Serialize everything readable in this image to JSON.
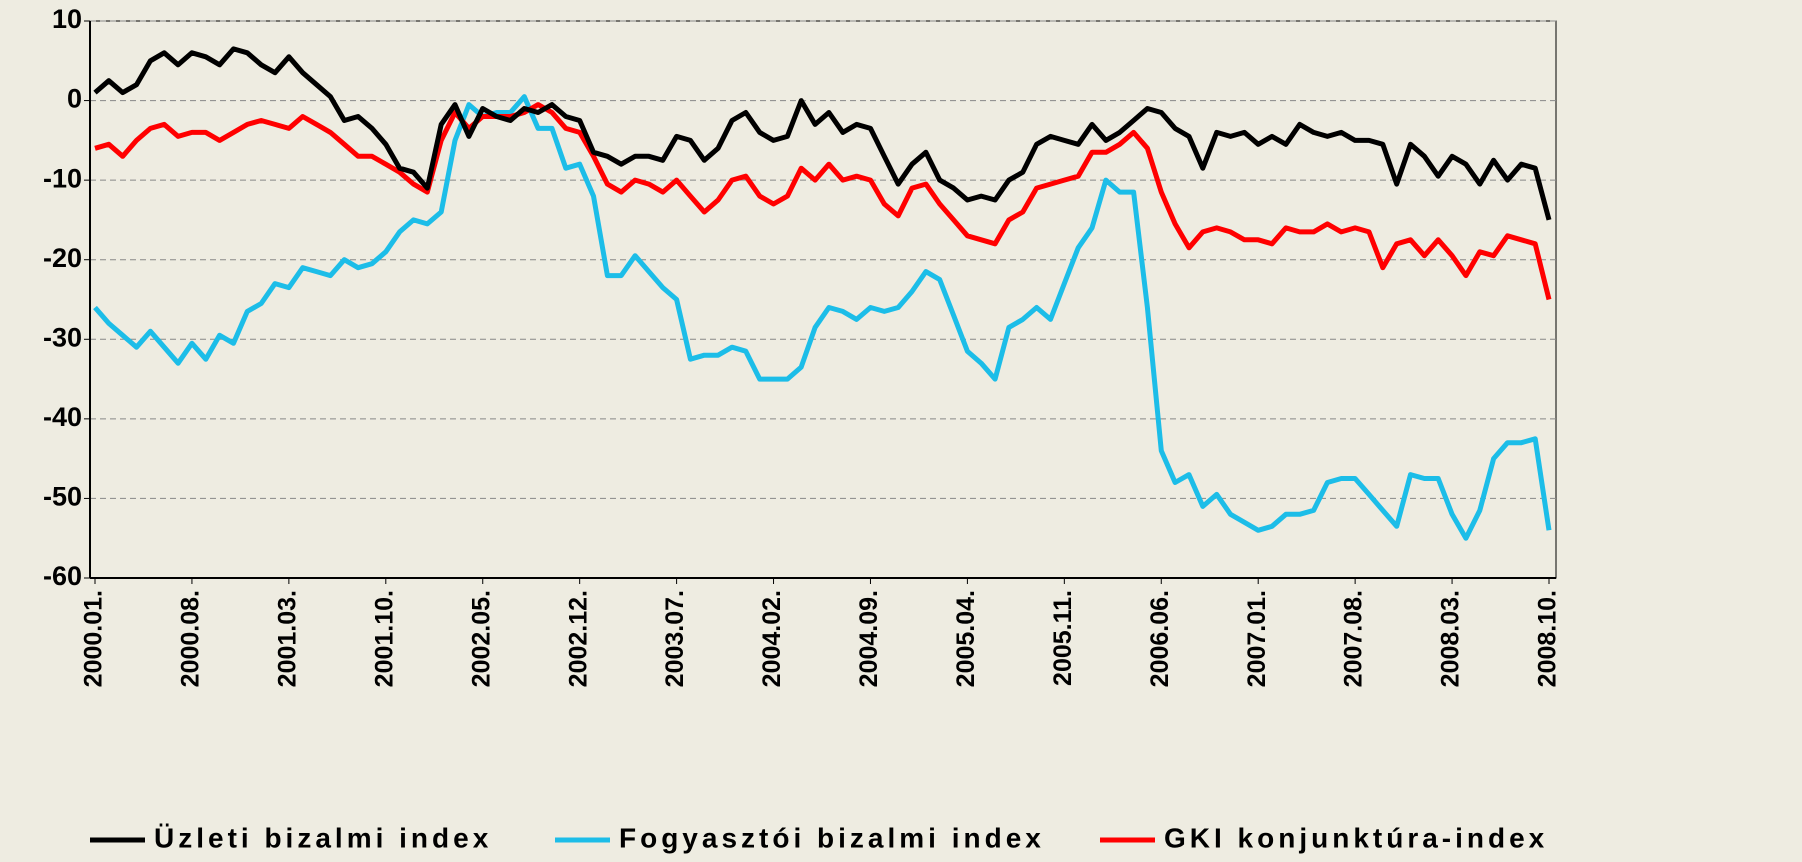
{
  "chart_data": {
    "type": "line",
    "categories": [
      "2000.01.",
      null,
      null,
      null,
      null,
      null,
      null,
      "2000.08.",
      null,
      null,
      null,
      null,
      null,
      null,
      "2001.03.",
      null,
      null,
      null,
      null,
      null,
      null,
      "2001.10.",
      null,
      null,
      null,
      null,
      null,
      null,
      "2002.05.",
      null,
      null,
      null,
      null,
      null,
      null,
      "2002.12.",
      null,
      null,
      null,
      null,
      null,
      null,
      "2003.07.",
      null,
      null,
      null,
      null,
      null,
      null,
      "2004.02.",
      null,
      null,
      null,
      null,
      null,
      null,
      "2004.09.",
      null,
      null,
      null,
      null,
      null,
      null,
      "2005.04.",
      null,
      null,
      null,
      null,
      null,
      null,
      "2005.11.",
      null,
      null,
      null,
      null,
      null,
      null,
      "2006.06.",
      null,
      null,
      null,
      null,
      null,
      null,
      "2007.01.",
      null,
      null,
      null,
      null,
      null,
      null,
      "2007.08.",
      null,
      null,
      null,
      null,
      null,
      null,
      "2008.03.",
      null,
      null,
      null,
      null,
      null,
      null,
      "2008.10."
    ],
    "series": [
      {
        "name": "Üzleti bizalmi index",
        "color": "#000000",
        "values": [
          1,
          2.5,
          1,
          2,
          5,
          6,
          4.5,
          6,
          5.5,
          4.5,
          6.5,
          6,
          4.5,
          3.5,
          5.5,
          3.5,
          2,
          0.5,
          -2.5,
          -2,
          -3.5,
          -5.5,
          -8.5,
          -9,
          -11,
          -3,
          -0.5,
          -4.5,
          -1,
          -2,
          -2.5,
          -1,
          -1.5,
          -0.5,
          -2,
          -2.5,
          -6.5,
          -7,
          -8,
          -7,
          -7,
          -7.5,
          -4.5,
          -5,
          -7.5,
          -6,
          -2.5,
          -1.5,
          -4,
          -5,
          -4.5,
          0,
          -3,
          -1.5,
          -4,
          -3,
          -3.5,
          -7,
          -10.5,
          -8,
          -6.5,
          -10,
          -11,
          -12.5,
          -12,
          -12.5,
          -10,
          -9,
          -5.5,
          -4.5,
          -5,
          -5.5,
          -3,
          -5,
          -4,
          -2.5,
          -1,
          -1.5,
          -3.5,
          -4.5,
          -8.5,
          -4,
          -4.5,
          -4,
          -5.5,
          -4.5,
          -5.5,
          -3,
          -4,
          -4.5,
          -4,
          -5,
          -5,
          -5.5,
          -10.5,
          -5.5,
          -7,
          -9.5,
          -7,
          -8,
          -10.5,
          -7.5,
          -10,
          -8,
          -8.5,
          -15
        ]
      },
      {
        "name": "Fogyasztói bizalmi index",
        "color": "#1cbde8",
        "values": [
          -26,
          -28,
          -29.5,
          -31,
          -29,
          -31,
          -33,
          -30.5,
          -32.5,
          -29.5,
          -30.5,
          -26.5,
          -25.5,
          -23,
          -23.5,
          -21,
          -21.5,
          -22,
          -20,
          -21,
          -20.5,
          -19,
          -16.5,
          -15,
          -15.5,
          -14,
          -5,
          -0.5,
          -2,
          -1.5,
          -1.5,
          0.5,
          -3.5,
          -3.5,
          -8.5,
          -8,
          -12,
          -22,
          -22,
          -19.5,
          -21.5,
          -23.5,
          -25,
          -32.5,
          -32,
          -32,
          -31,
          -31.5,
          -35,
          -35,
          -35,
          -33.5,
          -28.5,
          -26,
          -26.5,
          -27.5,
          -26,
          -26.5,
          -26,
          -24,
          -21.5,
          -22.5,
          -27,
          -31.5,
          -33,
          -35,
          -28.5,
          -27.5,
          -26,
          -27.5,
          -23,
          -18.5,
          -16,
          -10,
          -11.5,
          -11.5,
          -26,
          -44,
          -48,
          -47,
          -51,
          -49.5,
          -52,
          -53,
          -54,
          -53.5,
          -52,
          -52,
          -51.5,
          -48,
          -47.5,
          -47.5,
          -49.5,
          -51.5,
          -53.5,
          -47,
          -47.5,
          -47.5,
          -52,
          -55,
          -51.5,
          -45,
          -43,
          -43,
          -42.5,
          -54
        ]
      },
      {
        "name": "GKI konjunktúra-index",
        "color": "#ff0000",
        "values": [
          -6,
          -5.5,
          -7,
          -5,
          -3.5,
          -3,
          -4.5,
          -4,
          -4,
          -5,
          -4,
          -3,
          -2.5,
          -3,
          -3.5,
          -2,
          -3,
          -4,
          -5.5,
          -7,
          -7,
          -8,
          -9,
          -10.5,
          -11.5,
          -5,
          -1.5,
          -3.5,
          -2,
          -2,
          -2,
          -1.5,
          -0.5,
          -1.5,
          -3.5,
          -4,
          -7,
          -10.5,
          -11.5,
          -10,
          -10.5,
          -11.5,
          -10,
          -12,
          -14,
          -12.5,
          -10,
          -9.5,
          -12,
          -13,
          -12,
          -8.5,
          -10,
          -8,
          -10,
          -9.5,
          -10,
          -13,
          -14.5,
          -11,
          -10.5,
          -13,
          -15,
          -17,
          -17.5,
          -18,
          -15,
          -14,
          -11,
          -10.5,
          -10,
          -9.5,
          -6.5,
          -6.5,
          -5.5,
          -4,
          -6,
          -11.5,
          -15.5,
          -18.5,
          -16.5,
          -16,
          -16.5,
          -17.5,
          -17.5,
          -18,
          -16,
          -16.5,
          -16.5,
          -15.5,
          -16.5,
          -16,
          -16.5,
          -21,
          -18,
          -17.5,
          -19.5,
          -17.5,
          -19.5,
          -22,
          -19,
          -19.5,
          -17,
          -17.5,
          -18,
          -25
        ]
      }
    ],
    "ylim": [
      -60,
      10
    ],
    "yticks": [
      -60,
      -50,
      -40,
      -30,
      -20,
      -10,
      0,
      10
    ],
    "grid": true,
    "legend": "bottom"
  }
}
